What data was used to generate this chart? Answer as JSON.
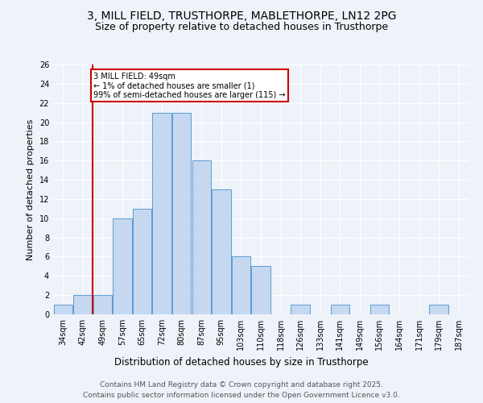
{
  "title1": "3, MILL FIELD, TRUSTHORPE, MABLETHORPE, LN12 2PG",
  "title2": "Size of property relative to detached houses in Trusthorpe",
  "xlabel": "Distribution of detached houses by size in Trusthorpe",
  "ylabel": "Number of detached properties",
  "categories": [
    "34sqm",
    "42sqm",
    "49sqm",
    "57sqm",
    "65sqm",
    "72sqm",
    "80sqm",
    "87sqm",
    "95sqm",
    "103sqm",
    "110sqm",
    "118sqm",
    "126sqm",
    "133sqm",
    "141sqm",
    "149sqm",
    "156sqm",
    "164sqm",
    "171sqm",
    "179sqm",
    "187sqm"
  ],
  "values": [
    1,
    2,
    2,
    10,
    11,
    21,
    21,
    16,
    13,
    6,
    5,
    0,
    1,
    0,
    1,
    0,
    1,
    0,
    0,
    1,
    0
  ],
  "bar_color": "#c5d8f0",
  "bar_edge_color": "#5b9bd5",
  "highlight_index": 2,
  "highlight_line_color": "#cc0000",
  "ylim": [
    0,
    26
  ],
  "yticks": [
    0,
    2,
    4,
    6,
    8,
    10,
    12,
    14,
    16,
    18,
    20,
    22,
    24,
    26
  ],
  "annotation_text": "3 MILL FIELD: 49sqm\n← 1% of detached houses are smaller (1)\n99% of semi-detached houses are larger (115) →",
  "annotation_box_color": "#ffffff",
  "annotation_border_color": "#cc0000",
  "footer1": "Contains HM Land Registry data © Crown copyright and database right 2025.",
  "footer2": "Contains public sector information licensed under the Open Government Licence v3.0.",
  "background_color": "#eef2f9",
  "grid_color": "#ffffff",
  "title1_fontsize": 10,
  "title2_fontsize": 9,
  "xlabel_fontsize": 8.5,
  "ylabel_fontsize": 8,
  "tick_fontsize": 7,
  "footer_fontsize": 6.5,
  "ann_fontsize": 7
}
